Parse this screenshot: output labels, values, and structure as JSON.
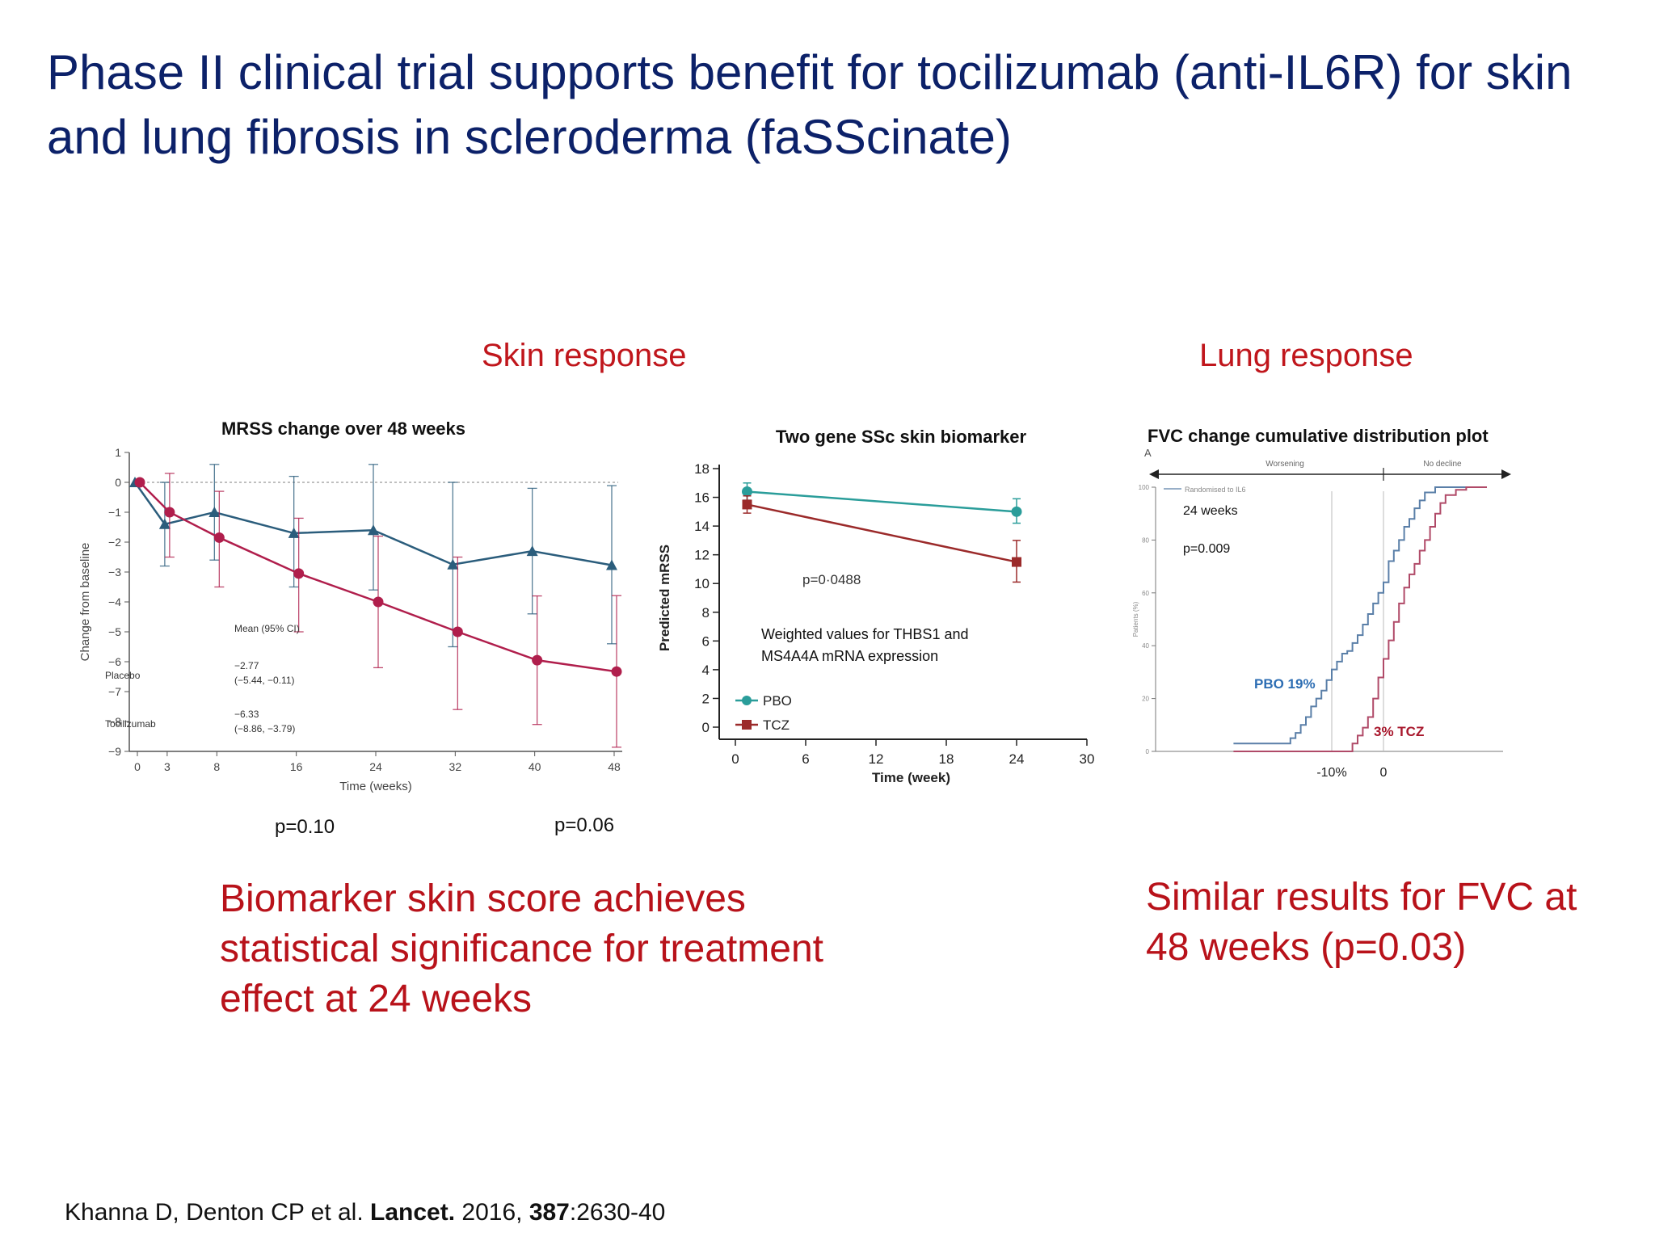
{
  "title": "Phase II clinical trial supports benefit for tocilizumab (anti-IL6R) for skin and lung fibrosis in scleroderma (faSScinate)",
  "sections": {
    "skin": "Skin response",
    "lung": "Lung response"
  },
  "mrss": {
    "chart_data": {
      "type": "line",
      "title": "MRSS change over 48 weeks",
      "xlabel": "Time (weeks)",
      "ylabel": "Change from baseline",
      "xlim": [
        0,
        48
      ],
      "ylim": [
        -9,
        1
      ],
      "x_ticks": [
        0,
        3,
        8,
        16,
        24,
        32,
        40,
        48
      ],
      "y_ticks": [
        1,
        0,
        -1,
        -2,
        -3,
        -4,
        -5,
        -6,
        -7,
        -8,
        -9
      ],
      "series": [
        {
          "name": "Placebo",
          "color": "#2b5d7c",
          "marker": "triangle",
          "x": [
            0,
            3,
            8,
            16,
            24,
            32,
            40,
            48
          ],
          "y": [
            0,
            -1.4,
            -1.0,
            -1.7,
            -1.6,
            -2.75,
            -2.3,
            -2.77
          ],
          "err": [
            [
              0,
              0
            ],
            [
              -2.8,
              0
            ],
            [
              -2.6,
              0.6
            ],
            [
              -3.5,
              0.2
            ],
            [
              -3.6,
              0.6
            ],
            [
              -5.5,
              0
            ],
            [
              -4.4,
              -0.2
            ],
            [
              -5.4,
              -0.11
            ]
          ]
        },
        {
          "name": "Tocilizumab",
          "color": "#b01e4c",
          "marker": "circle",
          "x": [
            0,
            3,
            8,
            16,
            24,
            32,
            40,
            48
          ],
          "y": [
            0,
            -1.0,
            -1.85,
            -3.05,
            -4.0,
            -5.0,
            -5.95,
            -6.33
          ],
          "err": [
            [
              0,
              0
            ],
            [
              -2.5,
              0.3
            ],
            [
              -3.5,
              -0.3
            ],
            [
              -5.0,
              -1.2
            ],
            [
              -6.2,
              -1.8
            ],
            [
              -7.6,
              -2.5
            ],
            [
              -8.1,
              -3.8
            ],
            [
              -8.86,
              -3.79
            ]
          ]
        }
      ],
      "legend_header": "Mean (95% CI)",
      "legend_rows": [
        {
          "name": "Placebo",
          "mean": "−2.77",
          "ci": "(−5.44, −0.11)"
        },
        {
          "name": "Tocilizumab",
          "mean": "−6.33",
          "ci": "(−8.86, −3.79)"
        }
      ]
    },
    "pvalues": [
      "p=0.10",
      "p=0.06"
    ]
  },
  "biomarker": {
    "chart_data": {
      "type": "line",
      "title": "Two gene SSc skin biomarker",
      "xlabel": "Time (week)",
      "ylabel": "Predicted mRSS",
      "xlim": [
        0,
        30
      ],
      "ylim": [
        0,
        18
      ],
      "x_ticks": [
        0,
        6,
        12,
        18,
        24,
        30
      ],
      "y_ticks": [
        0,
        2,
        4,
        6,
        8,
        10,
        12,
        14,
        16,
        18
      ],
      "series": [
        {
          "name": "PBO",
          "color": "#2a9d9a",
          "marker": "circle",
          "x": [
            1,
            24
          ],
          "y": [
            16.4,
            15.0
          ],
          "err": [
            [
              15.8,
              17.0
            ],
            [
              14.2,
              15.9
            ]
          ]
        },
        {
          "name": "TCZ",
          "color": "#9b2a2a",
          "marker": "square",
          "x": [
            1,
            24
          ],
          "y": [
            15.5,
            11.5
          ],
          "err": [
            [
              14.9,
              16.1
            ],
            [
              10.1,
              13.0
            ]
          ]
        }
      ],
      "annotation_p": "p=0·0488",
      "note_line1": "Weighted values for THBS1 and",
      "note_line2": "MS4A4A mRNA expression"
    }
  },
  "fvc": {
    "chart_data": {
      "type": "line",
      "title": "FVC change cumulative distribution plot",
      "panel_letter": "A",
      "direction_left": "Worsening",
      "direction_right": "No decline",
      "legend_text": "Randomised to IL6",
      "xlabel": "",
      "ylabel": "Patients (%)",
      "ylim": [
        0,
        100
      ],
      "x_ticks": [
        "-10%",
        "0"
      ],
      "y_ticks": [
        0,
        20,
        40,
        60,
        80,
        100
      ],
      "series": [
        {
          "name": "PBO",
          "color": "#5a7fa8",
          "x": [
            -29,
            -22,
            -18,
            -17,
            -16,
            -15,
            -14,
            -13,
            -12,
            -11,
            -10,
            -9,
            -8,
            -7,
            -6,
            -5,
            -4,
            -3,
            -2,
            -1,
            0,
            1,
            2,
            3,
            4,
            5,
            6,
            7,
            8,
            10,
            12,
            20
          ],
          "y": [
            3,
            3,
            5,
            7,
            10,
            13,
            17,
            20,
            23,
            27,
            31,
            34,
            37,
            38,
            41,
            44,
            48,
            52,
            56,
            60,
            64,
            72,
            76,
            80,
            85,
            88,
            92,
            95,
            98,
            100,
            100,
            100
          ]
        },
        {
          "name": "TCZ",
          "color": "#b04a68",
          "x": [
            -29,
            -10,
            -6,
            -5,
            -4,
            -3,
            -2,
            -1,
            0,
            1,
            2,
            3,
            4,
            5,
            6,
            7,
            8,
            9,
            10,
            11,
            12,
            14,
            16,
            20
          ],
          "y": [
            0,
            0,
            3,
            6,
            9,
            13,
            20,
            28,
            35,
            42,
            49,
            56,
            62,
            67,
            71,
            76,
            80,
            85,
            90,
            94,
            97,
            99,
            100,
            100
          ]
        }
      ],
      "annotations": {
        "weeks": "24 weeks",
        "p": "p=0.009",
        "pbo_label": "PBO 19%",
        "tcz_label": "3% TCZ"
      }
    }
  },
  "text_blocks": {
    "left_line1": "Biomarker skin score achieves",
    "left_line2": "statistical significance for treatment",
    "left_line3": "effect at 24 weeks",
    "right_line1": "Similar results for FVC at",
    "right_line2": "48 weeks (p=0.03)"
  },
  "citation": {
    "authors": "Khanna D, Denton CP et al. ",
    "journal": "Lancet.",
    "year": " 2016, ",
    "volume": "387",
    "pages": ":2630-40"
  },
  "colors": {
    "title": "#0c2169",
    "accent_red": "#c0161c"
  }
}
